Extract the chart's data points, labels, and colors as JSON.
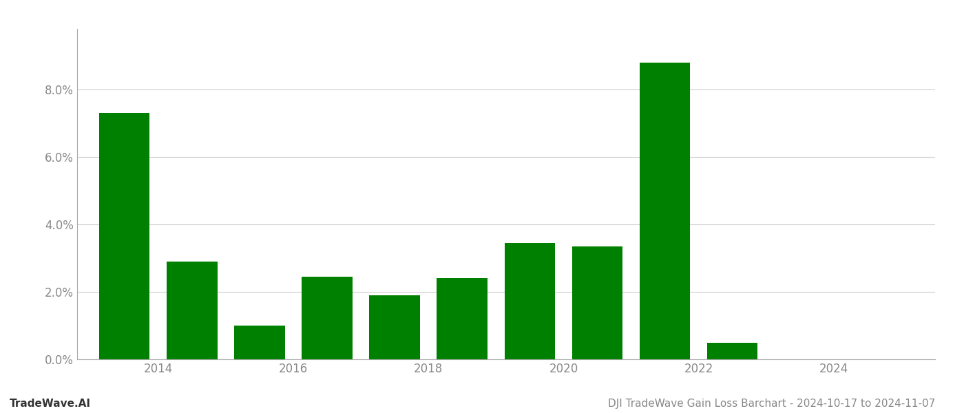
{
  "years": [
    2013,
    2014,
    2015,
    2016,
    2017,
    2018,
    2019,
    2020,
    2021,
    2022,
    2023
  ],
  "values": [
    0.073,
    0.029,
    0.01,
    0.0245,
    0.019,
    0.024,
    0.0345,
    0.0335,
    0.088,
    0.005,
    0.0001
  ],
  "bar_color": "#008000",
  "title": "DJI TradeWave Gain Loss Barchart - 2024-10-17 to 2024-11-07",
  "watermark": "TradeWave.AI",
  "ylim": [
    0,
    0.098
  ],
  "yticks": [
    0.0,
    0.02,
    0.04,
    0.06,
    0.08
  ],
  "xtick_labels": [
    "2014",
    "2016",
    "2018",
    "2020",
    "2022",
    "2024"
  ],
  "xtick_positions": [
    2013.5,
    2015.5,
    2017.5,
    2019.5,
    2021.5,
    2023.5
  ],
  "xlim_left": 2012.3,
  "xlim_right": 2025.0,
  "background_color": "#ffffff",
  "grid_color": "#cccccc",
  "title_fontsize": 11,
  "watermark_fontsize": 11,
  "tick_fontsize": 12,
  "bar_width": 0.75
}
